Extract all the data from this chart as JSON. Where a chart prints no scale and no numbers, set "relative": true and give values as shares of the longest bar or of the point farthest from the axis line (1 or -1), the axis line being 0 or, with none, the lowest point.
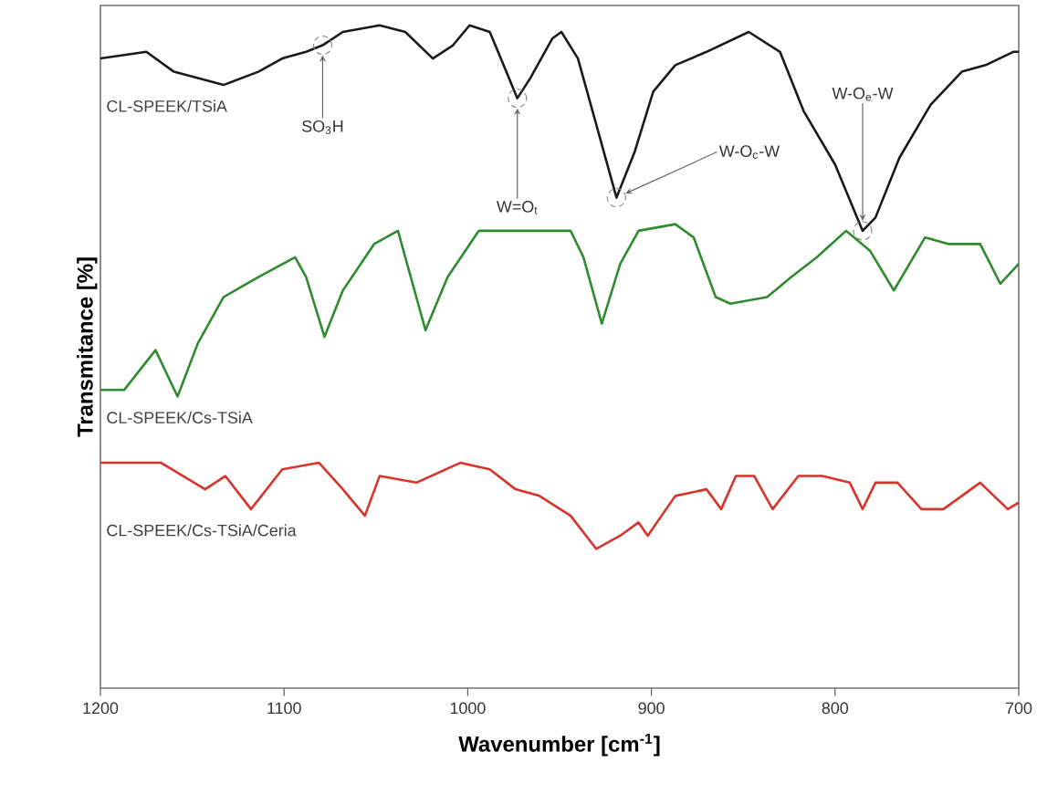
{
  "chart_data": {
    "type": "line",
    "relative": true,
    "xlabel": "Wavenumber [cm$^{-1}$]",
    "ylabel": "Transmitance [%]",
    "xlim": [
      1200,
      700
    ],
    "xticks": [
      1200,
      1100,
      1000,
      900,
      800,
      700
    ],
    "grid": false,
    "legend": false,
    "marker": "none",
    "line_style": "solid",
    "series": [
      {
        "name": "CL-SPEEK/TSiA",
        "color": "#1a1a1a",
        "x": [
          1200,
          1175,
          1160,
          1133,
          1114,
          1101,
          1088,
          1079,
          1068,
          1048,
          1034,
          1019,
          1008,
          999,
          988,
          979,
          973,
          966,
          954,
          949,
          940,
          930,
          919,
          909,
          899,
          887,
          870,
          847,
          830,
          817,
          800,
          785,
          778,
          765,
          748,
          731,
          718,
          703,
          700
        ],
        "values": [
          0.95,
          0.96,
          0.93,
          0.91,
          0.93,
          0.95,
          0.96,
          0.97,
          0.99,
          1.0,
          0.99,
          0.95,
          0.97,
          1.0,
          0.99,
          0.93,
          0.89,
          0.92,
          0.98,
          0.99,
          0.95,
          0.85,
          0.74,
          0.81,
          0.9,
          0.94,
          0.96,
          0.99,
          0.96,
          0.87,
          0.79,
          0.69,
          0.71,
          0.8,
          0.88,
          0.93,
          0.94,
          0.96,
          0.96
        ]
      },
      {
        "name": "CL-SPEEK/Cs-TSiA",
        "color": "#2e8b2e",
        "x": [
          1200,
          1187,
          1170,
          1158,
          1147,
          1133,
          1114,
          1094,
          1088,
          1078,
          1068,
          1051,
          1038,
          1023,
          1011,
          994,
          968,
          944,
          937,
          927,
          917,
          907,
          887,
          877,
          865,
          857,
          837,
          824,
          810,
          794,
          781,
          768,
          751,
          738,
          721,
          710,
          700
        ],
        "values": [
          0.45,
          0.45,
          0.51,
          0.44,
          0.52,
          0.59,
          0.62,
          0.65,
          0.62,
          0.53,
          0.6,
          0.67,
          0.69,
          0.54,
          0.62,
          0.69,
          0.69,
          0.69,
          0.65,
          0.55,
          0.64,
          0.69,
          0.7,
          0.68,
          0.59,
          0.58,
          0.59,
          0.62,
          0.65,
          0.69,
          0.66,
          0.6,
          0.68,
          0.67,
          0.67,
          0.61,
          0.64
        ]
      },
      {
        "name": "CL-SPEEK/Cs-TSiA/Ceria",
        "color": "#d9342b",
        "x": [
          1200,
          1167,
          1143,
          1132,
          1118,
          1101,
          1081,
          1068,
          1056,
          1048,
          1028,
          1004,
          988,
          974,
          961,
          944,
          930,
          917,
          907,
          902,
          887,
          870,
          862,
          854,
          844,
          834,
          820,
          807,
          792,
          785,
          778,
          766,
          753,
          741,
          721,
          706,
          700
        ],
        "values": [
          0.34,
          0.34,
          0.3,
          0.32,
          0.27,
          0.33,
          0.34,
          0.3,
          0.26,
          0.32,
          0.31,
          0.34,
          0.33,
          0.3,
          0.29,
          0.26,
          0.21,
          0.23,
          0.25,
          0.23,
          0.29,
          0.3,
          0.27,
          0.32,
          0.32,
          0.27,
          0.32,
          0.32,
          0.31,
          0.27,
          0.31,
          0.31,
          0.27,
          0.27,
          0.31,
          0.27,
          0.28
        ]
      }
    ],
    "annotations": [
      {
        "text": "SO$_{3}$H",
        "x": 1079,
        "y": 0.97
      },
      {
        "text": "W=O$_{t}$",
        "x": 973,
        "y": 0.89
      },
      {
        "text": "W-O$_{c}$-W",
        "x": 919,
        "y": 0.74
      },
      {
        "text": "W-O$_{e}$-W",
        "x": 785,
        "y": 0.69
      }
    ]
  }
}
